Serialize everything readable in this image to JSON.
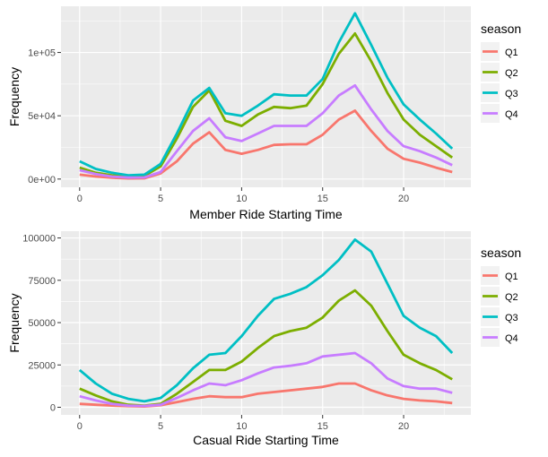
{
  "chart_data": [
    {
      "type": "line",
      "xlabel": "Member Ride Starting Time",
      "ylabel": "Frequency",
      "x": [
        0,
        1,
        2,
        3,
        4,
        5,
        6,
        7,
        8,
        9,
        10,
        11,
        12,
        13,
        14,
        15,
        16,
        17,
        18,
        19,
        20,
        21,
        22,
        23
      ],
      "xlim": [
        -1.15,
        24.15
      ],
      "ylim": [
        -6500,
        136500
      ],
      "x_ticks": [
        0,
        5,
        10,
        15,
        20
      ],
      "x_tick_labels": [
        "0",
        "5",
        "10",
        "15",
        "20"
      ],
      "y_ticks": [
        0,
        50000,
        100000
      ],
      "y_tick_labels": [
        "0e+00",
        "5e+04",
        "1e+05"
      ],
      "grid": true,
      "legend": {
        "title": "season",
        "placement": "right"
      },
      "series": [
        {
          "name": "Q1",
          "color": "#F8766D",
          "values": [
            3500,
            2000,
            1000,
            500,
            600,
            4500,
            14000,
            28000,
            37000,
            23000,
            20000,
            23000,
            27000,
            27500,
            27500,
            35000,
            47000,
            54000,
            38000,
            24000,
            16000,
            13000,
            9000,
            5500
          ]
        },
        {
          "name": "Q2",
          "color": "#7CAE00",
          "values": [
            9000,
            5000,
            3000,
            2000,
            2500,
            10000,
            32000,
            57000,
            70000,
            46000,
            42000,
            51000,
            57000,
            56000,
            58000,
            75000,
            99000,
            115000,
            93000,
            68000,
            47000,
            35000,
            26000,
            17000
          ]
        },
        {
          "name": "Q3",
          "color": "#00BFC4",
          "values": [
            14000,
            8000,
            5000,
            3000,
            3500,
            12000,
            36000,
            62000,
            72000,
            52000,
            50000,
            58000,
            67000,
            66000,
            66000,
            79000,
            108000,
            131000,
            106000,
            80000,
            59000,
            47000,
            36000,
            24000
          ]
        },
        {
          "name": "Q4",
          "color": "#C77CFF",
          "values": [
            7000,
            4000,
            2000,
            1200,
            1300,
            5500,
            22000,
            38000,
            48000,
            33000,
            30000,
            36000,
            42000,
            42000,
            42000,
            52000,
            66000,
            74000,
            55000,
            38000,
            26000,
            22000,
            17000,
            11000
          ]
        }
      ]
    },
    {
      "type": "line",
      "xlabel": "Casual Ride Starting Time",
      "ylabel": "Frequency",
      "x": [
        0,
        1,
        2,
        3,
        4,
        5,
        6,
        7,
        8,
        9,
        10,
        11,
        12,
        13,
        14,
        15,
        16,
        17,
        18,
        19,
        20,
        21,
        22,
        23
      ],
      "xlim": [
        -1.15,
        24.15
      ],
      "ylim": [
        -4500,
        104000
      ],
      "x_ticks": [
        0,
        5,
        10,
        15,
        20
      ],
      "x_tick_labels": [
        "0",
        "5",
        "10",
        "15",
        "20"
      ],
      "y_ticks": [
        0,
        25000,
        50000,
        75000,
        100000
      ],
      "y_tick_labels": [
        "0",
        "25000",
        "50000",
        "75000",
        "100000"
      ],
      "grid": true,
      "legend": {
        "title": "season",
        "placement": "right"
      },
      "series": [
        {
          "name": "Q1",
          "color": "#F8766D",
          "values": [
            2000,
            1500,
            1000,
            700,
            500,
            1200,
            3000,
            5000,
            6500,
            6000,
            6000,
            8000,
            9000,
            10000,
            11000,
            12000,
            14000,
            14000,
            10000,
            7000,
            5000,
            4000,
            3500,
            2500
          ]
        },
        {
          "name": "Q2",
          "color": "#7CAE00",
          "values": [
            11000,
            7000,
            3500,
            1500,
            1000,
            2000,
            8000,
            15000,
            22000,
            22000,
            27000,
            35000,
            42000,
            45000,
            47000,
            53000,
            63000,
            69000,
            60000,
            45000,
            31000,
            26000,
            22000,
            16500
          ]
        },
        {
          "name": "Q3",
          "color": "#00BFC4",
          "values": [
            22000,
            14000,
            8000,
            5000,
            3500,
            5500,
            13000,
            23000,
            31000,
            32000,
            42000,
            54000,
            64000,
            67000,
            71000,
            78000,
            87000,
            99000,
            92000,
            73000,
            54000,
            47000,
            42000,
            32000
          ]
        },
        {
          "name": "Q4",
          "color": "#C77CFF",
          "values": [
            6500,
            4000,
            2000,
            1000,
            800,
            1500,
            5500,
            10000,
            14000,
            13000,
            16000,
            20000,
            23500,
            24500,
            26000,
            30000,
            31000,
            32000,
            26000,
            17000,
            12500,
            11000,
            11000,
            8500
          ]
        }
      ]
    }
  ]
}
